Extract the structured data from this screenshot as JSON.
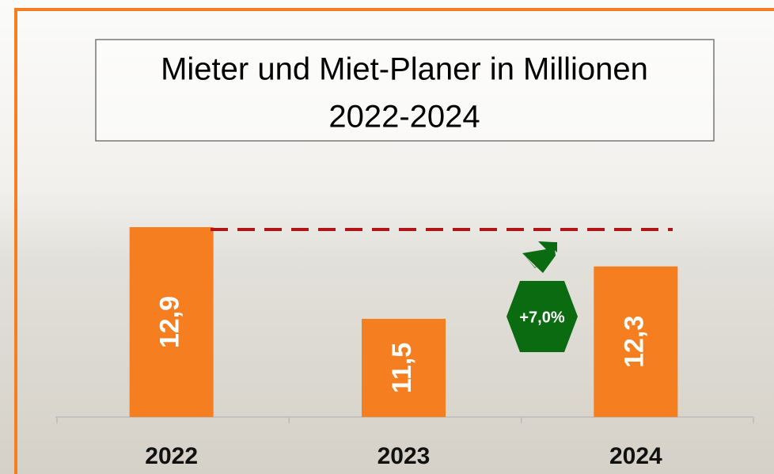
{
  "chart_data": {
    "type": "bar",
    "title": [
      "Mieter und Miet-Planer in Millionen",
      "2022-2024"
    ],
    "categories": [
      "2022",
      "2023",
      "2024"
    ],
    "values": [
      12.9,
      11.5,
      12.3
    ],
    "value_labels": [
      "12,9",
      "11,5",
      "12,3"
    ],
    "color": "#f57f20",
    "ylim": [
      10,
      14
    ],
    "annotation": "+7,0%"
  }
}
